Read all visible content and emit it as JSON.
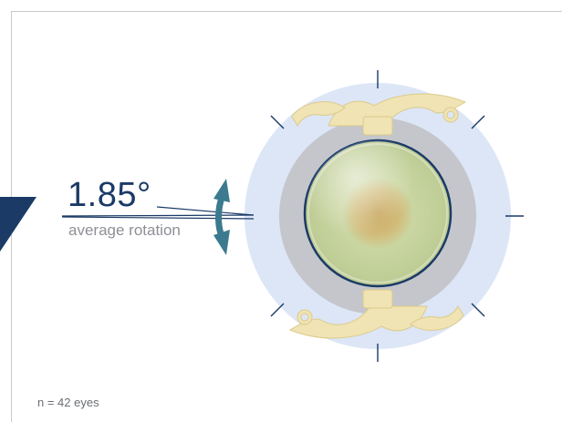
{
  "result": {
    "value": "1.85°",
    "caption": "average rotation"
  },
  "footnote": "n = 42 eyes",
  "colors": {
    "navy": "#1b3a66",
    "teal_arrow": "#3b7a8f",
    "outer_ring": "#dce6f6",
    "inner_ring": "#c4c6cb",
    "haptic": "#f0e3b4",
    "optic": "#c9d6a6"
  },
  "icons": [
    "rotation-arrow-icon",
    "intraocular-lens-illustration"
  ]
}
